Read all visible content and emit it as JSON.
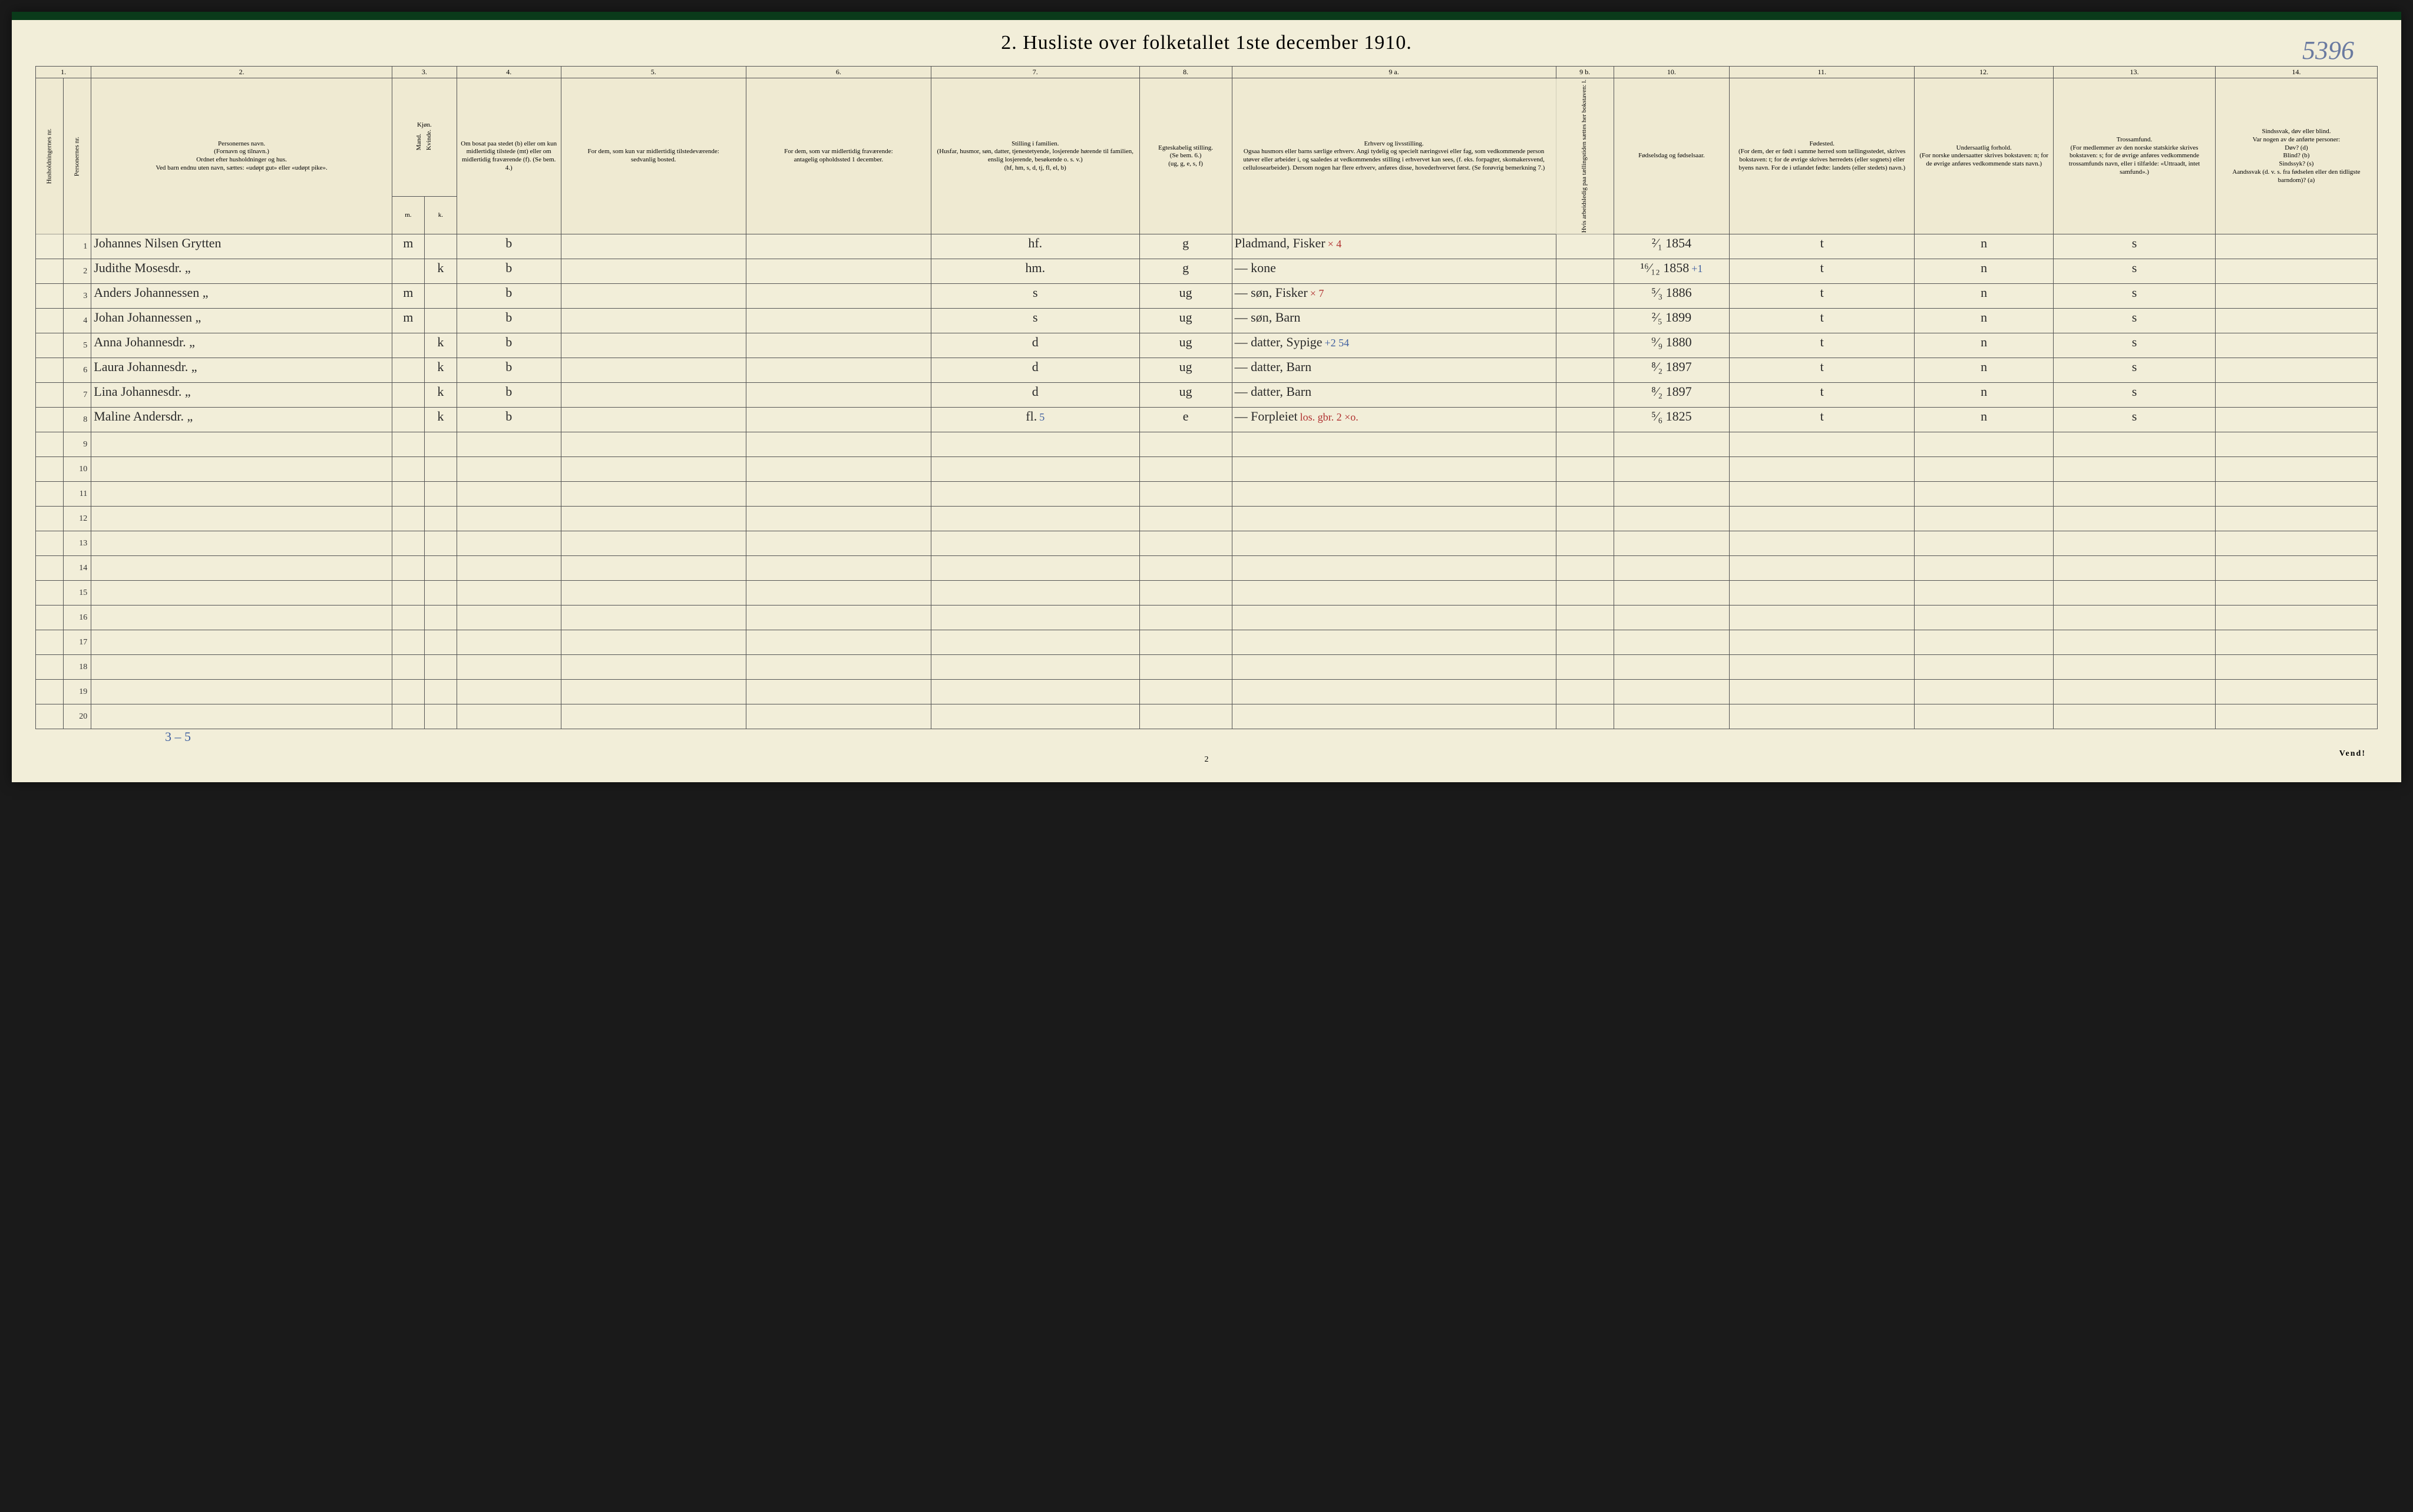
{
  "title": "2.  Husliste over folketallet 1ste december 1910.",
  "page_number_handwritten": "5396",
  "folio": "2",
  "vend": "Vend!",
  "bottom_annotation": "3 – 5",
  "column_numbers": [
    "1.",
    "",
    "2.",
    "3.",
    "",
    "4.",
    "5.",
    "6.",
    "7.",
    "8.",
    "9 a.",
    "9 b.",
    "10.",
    "11.",
    "12.",
    "13.",
    "14."
  ],
  "column_headers": [
    "Husholdningernes nr.",
    "Personernes nr.",
    "Personernes navn.\n(Fornavn og tilnavn.)\nOrdnet efter husholdninger og hus.\nVed barn endnu uten navn, sættes: «udøpt gut» eller «udøpt pike».",
    "Kjøn.\nMand.",
    "Kvinde.",
    "Om bosat paa stedet (b) eller om kun midlertidig tilstede (mt) eller om midlertidig fraværende (f). (Se bem. 4.)",
    "For dem, som kun var midlertidig tilstedeværende:\nsedvanlig bosted.",
    "For dem, som var midlertidig fraværende:\nantagelig opholdssted 1 december.",
    "Stilling i familien.\n(Husfar, husmor, søn, datter, tjenestetyende, losjerende hørende til familien, enslig losjerende, besøkende o. s. v.)\n(hf, hm, s, d, tj, fl, el, b)",
    "Egteskabelig stilling.\n(Se bem. 6.)\n(ug, g, e, s, f)",
    "Erhverv og livsstilling.\nOgsaa husmors eller barns særlige erhverv. Angi tydelig og specielt næringsvei eller fag, som vedkommende person utøver eller arbeider i, og saaledes at vedkommendes stilling i erhvervet kan sees, (f. eks. forpagter, skomakersvend, cellulosearbeider). Dersom nogen har flere erhverv, anføres disse, hovederhvervet først. (Se forøvrig bemerkning 7.)",
    "Hvis arbeidsledig paa tællingstiden sættes her bokstaven: l.",
    "Fødselsdag og fødselsaar.",
    "Fødested.\n(For dem, der er født i samme herred som tællingsstedet, skrives bokstaven: t; for de øvrige skrives herredets (eller sognets) eller byens navn. For de i utlandet fødte: landets (eller stedets) navn.)",
    "Undersaatlig forhold.\n(For norske undersaatter skrives bokstaven: n; for de øvrige anføres vedkommende stats navn.)",
    "Trossamfund.\n(For medlemmer av den norske statskirke skrives bokstaven: s; for de øvrige anføres vedkommende trossamfunds navn, eller i tilfælde: «Uttraadt, intet samfund».)",
    "Sindssvak, døv eller blind.\nVar nogen av de anførte personer:\nDøv? (d)\nBlind? (b)\nSindssyk? (s)\nAandssvak (d. v. s. fra fødselen eller den tidligste barndom)? (a)"
  ],
  "sex_sub": {
    "m": "m.",
    "k": "k."
  },
  "rows": [
    {
      "pn": "1",
      "name": "Johannes Nilsen Grytten",
      "sex_m": "m",
      "sex_k": "",
      "res": "b",
      "c7": "hf.",
      "c8": "g",
      "c9a": "Pladmand, Fisker",
      "c9a_annot_red": "× 4",
      "c10": "²⁄₁ 1854",
      "c11": "t",
      "c12": "n",
      "c13": "s"
    },
    {
      "pn": "2",
      "name": "Judithe Mosesdr.        „",
      "sex_m": "",
      "sex_k": "k",
      "res": "b",
      "c7": "hm.",
      "c8": "g",
      "c9a": "— kone",
      "c10": "¹⁶⁄₁₂ 1858",
      "c10_annot_blue": "+1",
      "c11": "t",
      "c12": "n",
      "c13": "s"
    },
    {
      "pn": "3",
      "name": "Anders Johannessen   „",
      "sex_m": "m",
      "sex_k": "",
      "res": "b",
      "c7": "s",
      "c8": "ug",
      "c9a": "— søn, Fisker",
      "c9a_annot_red": "× 7",
      "c10": "⁵⁄₃ 1886",
      "c11": "t",
      "c12": "n",
      "c13": "s"
    },
    {
      "pn": "4",
      "name": "Johan Johannessen    „",
      "sex_m": "m",
      "sex_k": "",
      "res": "b",
      "c7": "s",
      "c8": "ug",
      "c9a": "— søn, Barn",
      "c10": "²⁄₅ 1899",
      "c11": "t",
      "c12": "n",
      "c13": "s"
    },
    {
      "pn": "5",
      "name": "Anna Johannesdr.      „",
      "sex_m": "",
      "sex_k": "k",
      "res": "b",
      "c7": "d",
      "c8": "ug",
      "c9a": "— datter, Sypige",
      "c9a_annot_blue": "+2 54",
      "c10": "⁹⁄₉ 1880",
      "c11": "t",
      "c12": "n",
      "c13": "s"
    },
    {
      "pn": "6",
      "name": "Laura Johannesdr.     „",
      "sex_m": "",
      "sex_k": "k",
      "res": "b",
      "c7": "d",
      "c8": "ug",
      "c9a": "— datter, Barn",
      "c10": "⁸⁄₂ 1897",
      "c11": "t",
      "c12": "n",
      "c13": "s"
    },
    {
      "pn": "7",
      "name": "Lina Johannesdr.       „",
      "sex_m": "",
      "sex_k": "k",
      "res": "b",
      "c7": "d",
      "c8": "ug",
      "c9a": "— datter, Barn",
      "c10": "⁸⁄₂ 1897",
      "c11": "t",
      "c12": "n",
      "c13": "s"
    },
    {
      "pn": "8",
      "name": "Maline Andersdr.        „",
      "sex_m": "",
      "sex_k": "k",
      "res": "b",
      "c7": "fl.",
      "c7_annot_blue": "5",
      "c8": "e",
      "c9a": "— Forpleiet",
      "c9a_annot_red": "los. gbr. 2 ×o.",
      "c10": "⁵⁄₆ 1825",
      "c11": "t",
      "c12": "n",
      "c13": "s"
    }
  ],
  "empty_rows": [
    9,
    10,
    11,
    12,
    13,
    14,
    15,
    16,
    17,
    18,
    19,
    20
  ],
  "colors": {
    "paper": "#f2eed9",
    "ink": "#2a2a2a",
    "rule": "#555555",
    "red": "#b03030",
    "blue": "#4060a0",
    "topbar": "#0a3a1a"
  }
}
